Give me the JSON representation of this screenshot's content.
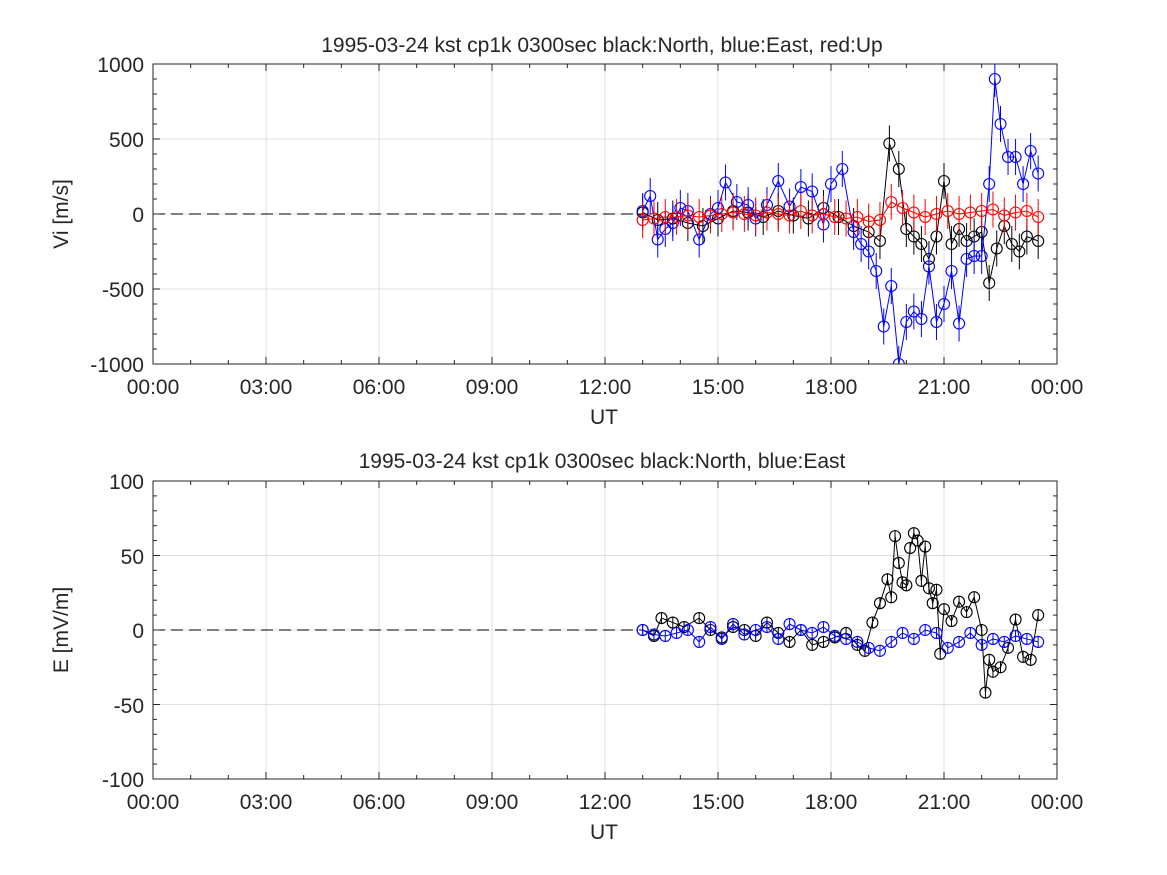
{
  "charts": [
    {
      "id": "vi",
      "title": "1995-03-24 kst cp1k 0300sec black:North, blue:East, red:Up",
      "xlabel": "UT",
      "ylabel": "Vi [m/s]",
      "xticks": [
        "00:00",
        "03:00",
        "06:00",
        "09:00",
        "12:00",
        "15:00",
        "18:00",
        "21:00",
        "00:00"
      ],
      "yticks": [
        "1000",
        "500",
        "0",
        "-500",
        "-1000"
      ]
    },
    {
      "id": "e",
      "title": "1995-03-24 kst cp1k 0300sec black:North, blue:East",
      "xlabel": "UT",
      "ylabel": "E [mV/m]",
      "xticks": [
        "00:00",
        "03:00",
        "06:00",
        "09:00",
        "12:00",
        "15:00",
        "18:00",
        "21:00",
        "00:00"
      ],
      "yticks": [
        "100",
        "50",
        "0",
        "-50",
        "-100"
      ]
    }
  ],
  "chart_data": [
    {
      "type": "scatter",
      "title": "1995-03-24 kst cp1k 0300sec black:North, blue:East, red:Up",
      "xlabel": "UT",
      "ylabel": "Vi [m/s]",
      "xlim": [
        0,
        24
      ],
      "ylim": [
        -1000,
        1000
      ],
      "x_unit": "hours UT",
      "grid": true,
      "reference_line": {
        "y": 0,
        "style": "dashed",
        "x_range": [
          0,
          13
        ]
      },
      "series": [
        {
          "name": "North",
          "color": "#000000",
          "x": [
            13.0,
            13.4,
            13.8,
            14.2,
            14.6,
            15.0,
            15.4,
            15.8,
            16.2,
            16.6,
            17.0,
            17.4,
            17.8,
            18.2,
            18.6,
            19.0,
            19.3,
            19.55,
            19.8,
            20.0,
            20.2,
            20.4,
            20.6,
            20.8,
            21.0,
            21.2,
            21.4,
            21.6,
            21.8,
            22.0,
            22.2,
            22.4,
            22.6,
            22.8,
            23.0,
            23.2,
            23.5
          ],
          "y": [
            10,
            -40,
            -30,
            -60,
            -80,
            -30,
            20,
            10,
            -20,
            20,
            -10,
            -30,
            40,
            -20,
            -80,
            -120,
            -180,
            470,
            300,
            -100,
            -150,
            -200,
            -300,
            -150,
            220,
            -200,
            -100,
            -180,
            -150,
            -120,
            -460,
            -230,
            -80,
            -200,
            -250,
            -150,
            -180
          ]
        },
        {
          "name": "East",
          "color": "#0000ff",
          "x": [
            13.0,
            13.2,
            13.4,
            13.6,
            13.8,
            14.0,
            14.2,
            14.5,
            14.8,
            15.0,
            15.2,
            15.5,
            15.8,
            16.0,
            16.3,
            16.6,
            16.9,
            17.2,
            17.5,
            17.8,
            18.0,
            18.3,
            18.6,
            18.8,
            19.0,
            19.2,
            19.4,
            19.6,
            19.8,
            20.0,
            20.2,
            20.4,
            20.6,
            20.8,
            21.0,
            21.2,
            21.4,
            21.6,
            21.8,
            22.0,
            22.2,
            22.35,
            22.5,
            22.7,
            22.9,
            23.1,
            23.3,
            23.5
          ],
          "y": [
            20,
            120,
            -170,
            -100,
            -60,
            40,
            20,
            -170,
            0,
            40,
            210,
            80,
            60,
            -30,
            60,
            220,
            50,
            180,
            150,
            -70,
            200,
            300,
            -120,
            -200,
            -250,
            -380,
            -750,
            -480,
            -1000,
            -720,
            -650,
            -700,
            -350,
            -720,
            -600,
            -380,
            -730,
            -300,
            -280,
            -280,
            200,
            900,
            600,
            380,
            380,
            200,
            420,
            270
          ]
        },
        {
          "name": "Up",
          "color": "#ff0000",
          "x": [
            13.0,
            13.3,
            13.6,
            13.9,
            14.2,
            14.5,
            14.8,
            15.1,
            15.4,
            15.7,
            16.0,
            16.3,
            16.6,
            16.9,
            17.2,
            17.5,
            17.8,
            18.1,
            18.4,
            18.7,
            19.0,
            19.3,
            19.6,
            19.9,
            20.2,
            20.5,
            20.8,
            21.1,
            21.4,
            21.7,
            22.0,
            22.3,
            22.6,
            22.9,
            23.2,
            23.5
          ],
          "y": [
            -40,
            -30,
            -20,
            -20,
            -10,
            -20,
            -10,
            0,
            10,
            0,
            -10,
            10,
            0,
            -10,
            20,
            -10,
            0,
            -20,
            -30,
            -20,
            -50,
            -40,
            80,
            40,
            10,
            -20,
            0,
            20,
            0,
            10,
            20,
            30,
            -10,
            10,
            20,
            -20
          ]
        }
      ]
    },
    {
      "type": "scatter",
      "title": "1995-03-24 kst cp1k 0300sec black:North, blue:East",
      "xlabel": "UT",
      "ylabel": "E [mV/m]",
      "xlim": [
        0,
        24
      ],
      "ylim": [
        -100,
        100
      ],
      "x_unit": "hours UT",
      "grid": true,
      "reference_line": {
        "y": 0,
        "style": "dashed",
        "x_range": [
          0,
          13
        ]
      },
      "series": [
        {
          "name": "North",
          "color": "#000000",
          "x": [
            13.0,
            13.3,
            13.5,
            13.8,
            14.1,
            14.5,
            14.8,
            15.1,
            15.4,
            15.7,
            16.0,
            16.3,
            16.6,
            16.9,
            17.2,
            17.5,
            17.8,
            18.1,
            18.4,
            18.7,
            18.9,
            19.1,
            19.3,
            19.5,
            19.6,
            19.7,
            19.8,
            19.9,
            20.0,
            20.1,
            20.2,
            20.3,
            20.4,
            20.5,
            20.6,
            20.7,
            20.8,
            20.9,
            21.0,
            21.2,
            21.4,
            21.6,
            21.8,
            22.0,
            22.1,
            22.2,
            22.3,
            22.5,
            22.7,
            22.9,
            23.1,
            23.3,
            23.5
          ],
          "y": [
            0,
            -4,
            8,
            5,
            2,
            8,
            0,
            -5,
            2,
            0,
            -4,
            5,
            -2,
            -8,
            0,
            -10,
            -8,
            -5,
            -2,
            -10,
            -14,
            5,
            18,
            34,
            22,
            63,
            45,
            32,
            30,
            55,
            65,
            60,
            33,
            56,
            28,
            18,
            27,
            -16,
            14,
            6,
            19,
            12,
            22,
            0,
            -42,
            -20,
            -28,
            -25,
            -12,
            7,
            -18,
            -20,
            10
          ]
        },
        {
          "name": "East",
          "color": "#0000ff",
          "x": [
            13.0,
            13.3,
            13.6,
            13.9,
            14.2,
            14.5,
            14.8,
            15.1,
            15.4,
            15.7,
            16.0,
            16.3,
            16.6,
            16.9,
            17.2,
            17.5,
            17.8,
            18.1,
            18.4,
            18.7,
            19.0,
            19.3,
            19.6,
            19.9,
            20.2,
            20.5,
            20.8,
            21.1,
            21.4,
            21.7,
            22.0,
            22.3,
            22.6,
            22.9,
            23.2,
            23.5
          ],
          "y": [
            0,
            -3,
            -4,
            -2,
            0,
            -8,
            2,
            -6,
            4,
            -3,
            0,
            2,
            -6,
            4,
            0,
            -2,
            2,
            -4,
            -6,
            -8,
            -12,
            -14,
            -8,
            -2,
            -6,
            0,
            -2,
            -12,
            -8,
            -2,
            -10,
            -6,
            -8,
            -4,
            -6,
            -8
          ]
        }
      ]
    }
  ]
}
